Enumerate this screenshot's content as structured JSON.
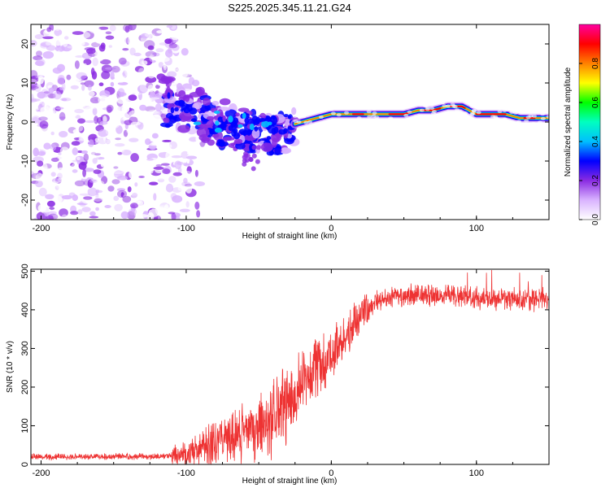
{
  "title": "S225.2025.345.11.21.G24",
  "chart_data": [
    {
      "type": "heatmap",
      "xlabel": "Height of straight line (km)",
      "ylabel": "Frequency (Hz)",
      "xlim": [
        -207,
        150
      ],
      "ylim": [
        -25,
        25
      ],
      "x_ticks": [
        -200,
        -100,
        0,
        100
      ],
      "x_tick_labels": [
        "-200",
        "-100",
        "0",
        "100"
      ],
      "y_ticks": [
        -20,
        -10,
        0,
        10,
        20
      ],
      "y_tick_labels": [
        "-20",
        "-10",
        "0",
        "10",
        "20"
      ],
      "colorbar": {
        "label": "Normalized spectral amplitude",
        "range": [
          0,
          1
        ],
        "ticks": [
          0.0,
          0.2,
          0.4,
          0.6,
          0.8
        ],
        "tick_labels": [
          "0.0",
          "0.2",
          "0.4",
          "0.6",
          "0.8"
        ],
        "colors": [
          "#ffffff",
          "#d9b3ff",
          "#8a2be2",
          "#0000ff",
          "#00bfff",
          "#00ffc0",
          "#00ff00",
          "#ffff00",
          "#ff8000",
          "#ff0000",
          "#ff00a0"
        ]
      },
      "ridge": {
        "x": [
          -110,
          -95,
          -80,
          -65,
          -50,
          -40,
          -30,
          -20,
          -10,
          0,
          10,
          20,
          30,
          40,
          50,
          60,
          70,
          80,
          90,
          100,
          110,
          120,
          130,
          140,
          150
        ],
        "y": [
          5,
          3,
          0,
          -1,
          -1,
          -2,
          -1,
          0,
          1,
          2,
          2,
          2,
          2,
          2,
          2,
          3,
          3,
          4,
          4,
          2,
          2,
          2,
          1,
          1,
          1
        ]
      }
    },
    {
      "type": "line",
      "name": "SNR",
      "xlabel": "Height of straight line (km)",
      "ylabel": "SNR (10 * v/v)",
      "color": "#ee3333",
      "xlim": [
        -207,
        150
      ],
      "ylim": [
        0,
        505
      ],
      "x_ticks": [
        -200,
        -100,
        0,
        100
      ],
      "x_tick_labels": [
        "-200",
        "-100",
        "0",
        "100"
      ],
      "y_ticks": [
        0,
        100,
        200,
        300,
        400,
        500
      ],
      "y_tick_labels": [
        "0",
        "100",
        "200",
        "300",
        "400",
        "500"
      ],
      "x": [
        -207,
        -180,
        -150,
        -120,
        -100,
        -90,
        -80,
        -70,
        -60,
        -50,
        -40,
        -30,
        -20,
        -10,
        0,
        10,
        20,
        30,
        40,
        50,
        60,
        70,
        80,
        90,
        100,
        110,
        120,
        130,
        140,
        150
      ],
      "y": [
        20,
        20,
        20,
        20,
        25,
        40,
        60,
        70,
        80,
        95,
        120,
        160,
        220,
        260,
        290,
        330,
        380,
        420,
        430,
        435,
        440,
        440,
        440,
        435,
        430,
        425,
        430,
        430,
        425,
        430
      ]
    }
  ]
}
